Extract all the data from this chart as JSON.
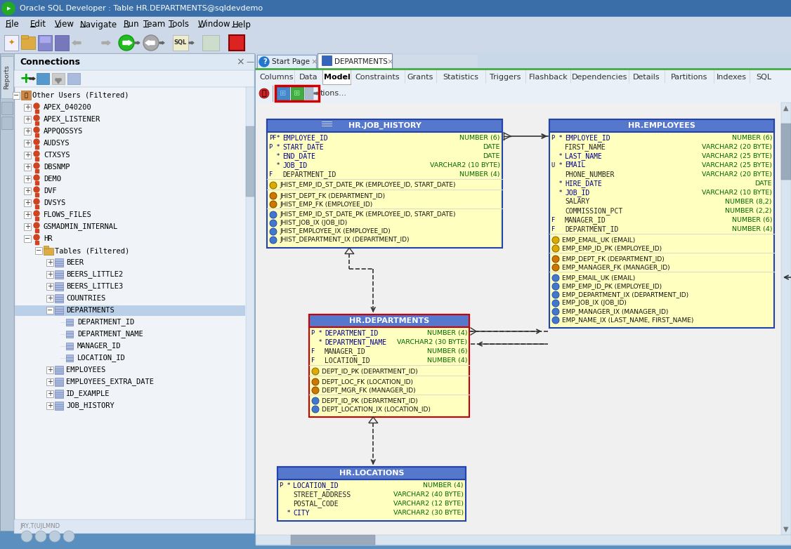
{
  "title_bar": "Oracle SQL Developer : Table HR.DEPARTMENTS@sqldevdemo",
  "bg_gradient_top": "#6a9fd8",
  "bg_gradient_bot": "#4a80c0",
  "title_bar_bg": "#4a80c0",
  "menu_bar_bg": "#d6e4f0",
  "toolbar_bg": "#d6e4f0",
  "left_panel_bg": "#f0f4f8",
  "left_panel_header_bg": "#e8f0f8",
  "connections_header_bg": "#e0ecf8",
  "right_area_bg": "#c8d8e8",
  "erd_canvas_bg": "#f0f0f0",
  "tab_bar_bg": "#e8f0f8",
  "inner_tab_bar_bg": "#f0f4f8",
  "model_toolbar_bg": "#f0f4f8",
  "menu_items": [
    "File",
    "Edit",
    "View",
    "Navigate",
    "Run",
    "Team",
    "Tools",
    "Window",
    "Help"
  ],
  "tabs_inner": [
    "Columns",
    "Data",
    "Model",
    "Constraints",
    "Grants",
    "Statistics",
    "Triggers",
    "Flashback",
    "Dependencies",
    "Details",
    "Partitions",
    "Indexes",
    "SQL"
  ],
  "jh_table": {
    "title": "HR.JOB_HISTORY",
    "border_color": "#2244aa",
    "header_color": "#6688cc",
    "body_color": "#ffffc0",
    "columns": [
      {
        "prefix": "PF*",
        "name": "EMPLOYEE_ID",
        "type": "NUMBER (6)"
      },
      {
        "prefix": "P *",
        "name": "START_DATE",
        "type": "DATE"
      },
      {
        "prefix": "  *",
        "name": "END_DATE",
        "type": "DATE"
      },
      {
        "prefix": "  *",
        "name": "JOB_ID",
        "type": "VARCHAR2 (10 BYTE)"
      },
      {
        "prefix": "F  ",
        "name": "DEPARTMENT_ID",
        "type": "NUMBER (4)"
      }
    ],
    "pk_section": [
      "JHIST_EMP_ID_ST_DATE_PK (EMPLOYEE_ID, START_DATE)"
    ],
    "fk_section": [
      "JHIST_DEPT_FK (DEPARTMENT_ID)",
      "JHIST_EMP_FK (EMPLOYEE_ID)"
    ],
    "idx_section": [
      "JHIST_EMP_ID_ST_DATE_PK (EMPLOYEE_ID, START_DATE)",
      "JHIST_JOB_IX (JOB_ID)",
      "JHIST_EMPLOYEE_IX (EMPLOYEE_ID)",
      "JHIST_DEPARTMENT_IX (DEPARTMENT_ID)"
    ]
  },
  "emp_table": {
    "title": "HR.EMPLOYEES",
    "border_color": "#2244aa",
    "header_color": "#6688cc",
    "body_color": "#ffffc0",
    "columns": [
      {
        "prefix": "P *",
        "name": "EMPLOYEE_ID",
        "type": "NUMBER (6)"
      },
      {
        "prefix": "   ",
        "name": "FIRST_NAME",
        "type": "VARCHAR2 (20 BYTE)"
      },
      {
        "prefix": "  *",
        "name": "LAST_NAME",
        "type": "VARCHAR2 (25 BYTE)"
      },
      {
        "prefix": "U *",
        "name": "EMAIL",
        "type": "VARCHAR2 (25 BYTE)"
      },
      {
        "prefix": "   ",
        "name": "PHONE_NUMBER",
        "type": "VARCHAR2 (20 BYTE)"
      },
      {
        "prefix": "  *",
        "name": "HIRE_DATE",
        "type": "DATE"
      },
      {
        "prefix": "  *",
        "name": "JOB_ID",
        "type": "VARCHAR2 (10 BYTE)"
      },
      {
        "prefix": "   ",
        "name": "SALARY",
        "type": "NUMBER (8,2)"
      },
      {
        "prefix": "   ",
        "name": "COMMISSION_PCT",
        "type": "NUMBER (2,2)"
      },
      {
        "prefix": "F  ",
        "name": "MANAGER_ID",
        "type": "NUMBER (6)"
      },
      {
        "prefix": "F  ",
        "name": "DEPARTMENT_ID",
        "type": "NUMBER (4)"
      }
    ],
    "pk_section": [
      "EMP_EMAIL_UK (EMAIL)",
      "EMP_EMP_ID_PK (EMPLOYEE_ID)"
    ],
    "fk_section": [
      "EMP_DEPT_FK (DEPARTMENT_ID)",
      "EMP_MANAGER_FK (MANAGER_ID)"
    ],
    "idx_section": [
      "EMP_EMAIL_UK (EMAIL)",
      "EMP_EMP_ID_PK (EMPLOYEE_ID)",
      "EMP_DEPARTMENT_IX (DEPARTMENT_ID)",
      "EMP_JOB_IX (JOB_ID)",
      "EMP_MANAGER_IX (MANAGER_ID)",
      "EMP_NAME_IX (LAST_NAME, FIRST_NAME)"
    ]
  },
  "dept_table": {
    "title": "HR.DEPARTMENTS",
    "border_color": "#cc0000",
    "header_color": "#6688cc",
    "body_color": "#ffffc0",
    "columns": [
      {
        "prefix": "P *",
        "name": "DEPARTMENT_ID",
        "type": "NUMBER (4)"
      },
      {
        "prefix": "  *",
        "name": "DEPARTMENT_NAME",
        "type": "VARCHAR2 (30 BYTE)"
      },
      {
        "prefix": "F  ",
        "name": "MANAGER_ID",
        "type": "NUMBER (6)"
      },
      {
        "prefix": "F  ",
        "name": "LOCATION_ID",
        "type": "NUMBER (4)"
      }
    ],
    "pk_section": [
      "DEPT_ID_PK (DEPARTMENT_ID)"
    ],
    "fk_section": [
      "DEPT_LOC_FK (LOCATION_ID)",
      "DEPT_MGR_FK (MANAGER_ID)"
    ],
    "idx_section": [
      "DEPT_ID_PK (DEPARTMENT_ID)",
      "DEPT_LOCATION_IX (LOCATION_ID)"
    ]
  },
  "loc_table": {
    "title": "HR.LOCATIONS",
    "border_color": "#2244aa",
    "header_color": "#6688cc",
    "body_color": "#ffffc0",
    "columns": [
      {
        "prefix": "P *",
        "name": "LOCATION_ID",
        "type": "NUMBER (4)"
      },
      {
        "prefix": "   ",
        "name": "STREET_ADDRESS",
        "type": "VARCHAR2 (40 BYTE)"
      },
      {
        "prefix": "   ",
        "name": "POSTAL_CODE",
        "type": "VARCHAR2 (12 BYTE)"
      },
      {
        "prefix": "  *",
        "name": "CITY",
        "type": "VARCHAR2 (30 BYTE)"
      }
    ]
  },
  "tree_items": [
    {
      "indent": 0,
      "type": "group",
      "label": "Other Users (Filtered)",
      "expanded": true
    },
    {
      "indent": 1,
      "type": "person",
      "label": "APEX_040200"
    },
    {
      "indent": 1,
      "type": "person",
      "label": "APEX_LISTENER"
    },
    {
      "indent": 1,
      "type": "person",
      "label": "APPQOSSYS"
    },
    {
      "indent": 1,
      "type": "person",
      "label": "AUDSYS"
    },
    {
      "indent": 1,
      "type": "person",
      "label": "CTXSYS"
    },
    {
      "indent": 1,
      "type": "person",
      "label": "DBSNMP"
    },
    {
      "indent": 1,
      "type": "person",
      "label": "DEMO"
    },
    {
      "indent": 1,
      "type": "person",
      "label": "DVF"
    },
    {
      "indent": 1,
      "type": "person",
      "label": "DVSYS"
    },
    {
      "indent": 1,
      "type": "person",
      "label": "FLOWS_FILES"
    },
    {
      "indent": 1,
      "type": "person",
      "label": "GSMADMIN_INTERNAL"
    },
    {
      "indent": 1,
      "type": "person",
      "label": "HR",
      "expanded": true
    },
    {
      "indent": 2,
      "type": "folder",
      "label": "Tables (Filtered)",
      "expanded": true
    },
    {
      "indent": 3,
      "type": "table",
      "label": "BEER"
    },
    {
      "indent": 3,
      "type": "table",
      "label": "BEERS_LITTLE2"
    },
    {
      "indent": 3,
      "type": "table",
      "label": "BEERS_LITTLE3"
    },
    {
      "indent": 3,
      "type": "table",
      "label": "COUNTRIES"
    },
    {
      "indent": 3,
      "type": "table",
      "label": "DEPARTMENTS",
      "selected": true,
      "expanded": true
    },
    {
      "indent": 4,
      "type": "column",
      "label": "DEPARTMENT_ID"
    },
    {
      "indent": 4,
      "type": "column",
      "label": "DEPARTMENT_NAME"
    },
    {
      "indent": 4,
      "type": "column",
      "label": "MANAGER_ID"
    },
    {
      "indent": 4,
      "type": "column",
      "label": "LOCATION_ID"
    },
    {
      "indent": 3,
      "type": "table",
      "label": "EMPLOYEES"
    },
    {
      "indent": 3,
      "type": "table",
      "label": "EMPLOYEES_EXTRA_DATE"
    },
    {
      "indent": 3,
      "type": "table",
      "label": "ID_EXAMPLE"
    },
    {
      "indent": 3,
      "type": "table",
      "label": "JOB_HISTORY"
    }
  ]
}
